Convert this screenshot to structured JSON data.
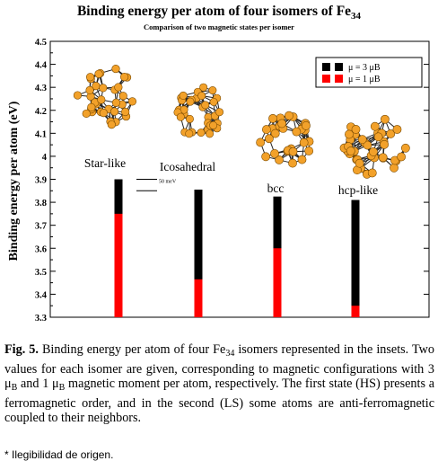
{
  "chart_data": {
    "type": "bar",
    "title": "Binding energy per atom of four isomers of Fe",
    "title_subscript": "34",
    "subtitle": "Comparison of two magnetic states per isomer",
    "ylabel": "Binding energy per atom (eV)",
    "ylim": [
      3.3,
      4.5
    ],
    "yticks": [
      3.3,
      3.4,
      3.5,
      3.6,
      3.7,
      3.8,
      3.9,
      4,
      4.1,
      4.2,
      4.3,
      4.4,
      4.5
    ],
    "categories": [
      "Star-like",
      "Icosahedral",
      "bcc",
      "hcp-like"
    ],
    "series": [
      {
        "name": "μ = 3 μB",
        "color": "#000000",
        "values": [
          3.9,
          3.855,
          3.825,
          3.81
        ]
      },
      {
        "name": "μ = 1 μB",
        "color": "#ff0000",
        "values": [
          3.75,
          3.465,
          3.6,
          3.35
        ]
      }
    ],
    "annotation": {
      "text": "50 meV"
    },
    "legend": "top-right",
    "insets": [
      {
        "name": "star-like-cluster"
      },
      {
        "name": "icosahedral-cluster"
      },
      {
        "name": "bcc-cluster"
      },
      {
        "name": "hcp-like-cluster"
      }
    ],
    "atom_color": "#f2a12a"
  },
  "caption": {
    "label": "Fig. 5.",
    "part1": " Binding energy per atom of four Fe",
    "sub": "34",
    "part2": " isomers represented in the insets. Two values for each isomer are given, corresponding to magnetic configurations with 3 μ",
    "sub_b1": "B",
    "part3": " and 1 μ",
    "sub_b2": "B",
    "part4": " magnetic moment per atom, respectively. The first state (HS) presents a ferromagnetic order, and in the second (LS) some atoms are anti-ferromagnetic coupled to their neighbors."
  },
  "footnote": "* Ilegibilidad de origen."
}
